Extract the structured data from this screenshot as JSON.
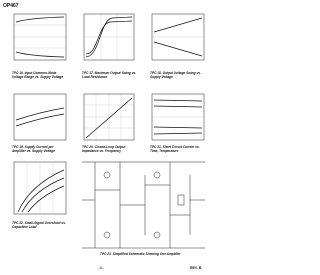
{
  "header": {
    "title": "OP467"
  },
  "captions": [
    "TPC 16. Input Common-Mode Voltage Range vs. Supply Voltage",
    "TPC 17. Maximum Output Swing vs. Load Resistance",
    "TPC 18. Output Voltage Swing vs. Supply Voltage",
    "TPC 19. Supply Current per Amplifier vs. Supply Voltage",
    "TPC 20. Closed-Loop Output Impedance vs. Frequency",
    "TPC 21. Short Circuit Current vs. Time, Temperature",
    "TPC 22. Small-Signal Overshoot vs. Capacitive Load",
    "TPC 23. Simplified Schematic Showing One Amplifier"
  ],
  "footer": {
    "page": "–6–",
    "revision": "REV. B"
  }
}
